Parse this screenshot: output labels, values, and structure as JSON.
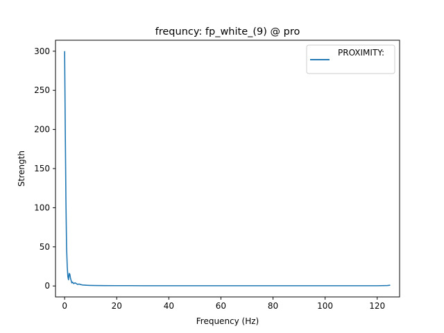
{
  "chart_data": {
    "type": "line",
    "title": "frequncy: fp_white_(9) @ pro",
    "xlabel": "Frequency (Hz)",
    "ylabel": "Strength",
    "xlim": [
      -3.5,
      128.6
    ],
    "ylim": [
      -14,
      314
    ],
    "xticks": [
      0,
      20,
      40,
      60,
      80,
      100,
      120
    ],
    "yticks": [
      0,
      50,
      100,
      150,
      200,
      250,
      300
    ],
    "grid": false,
    "legend_position": "top-right",
    "series": [
      {
        "name": "PROXIMITY:",
        "color": "#1f77b4",
        "x": [
          0,
          0.25,
          0.5,
          0.75,
          1.0,
          1.25,
          1.5,
          1.75,
          2.0,
          2.25,
          2.5,
          2.75,
          3.0,
          3.25,
          3.5,
          4.0,
          4.5,
          5.0,
          5.5,
          6.0,
          6.5,
          7.0,
          8.0,
          9.0,
          10.0,
          12.0,
          15.0,
          20.0,
          25.0,
          30.0,
          40.0,
          50.0,
          60.0,
          70.0,
          80.0,
          90.0,
          100.0,
          110.0,
          120.0,
          124.0,
          125.0
        ],
        "y": [
          300,
          200,
          110,
          50,
          25,
          12,
          8,
          16,
          15,
          10,
          7,
          4,
          5,
          4,
          3,
          4,
          3,
          2,
          2.5,
          2,
          1.5,
          1.2,
          1.0,
          0.8,
          0.7,
          0.6,
          0.5,
          0.4,
          0.4,
          0.3,
          0.3,
          0.3,
          0.3,
          0.3,
          0.3,
          0.3,
          0.3,
          0.3,
          0.3,
          0.6,
          1.0
        ]
      }
    ]
  }
}
